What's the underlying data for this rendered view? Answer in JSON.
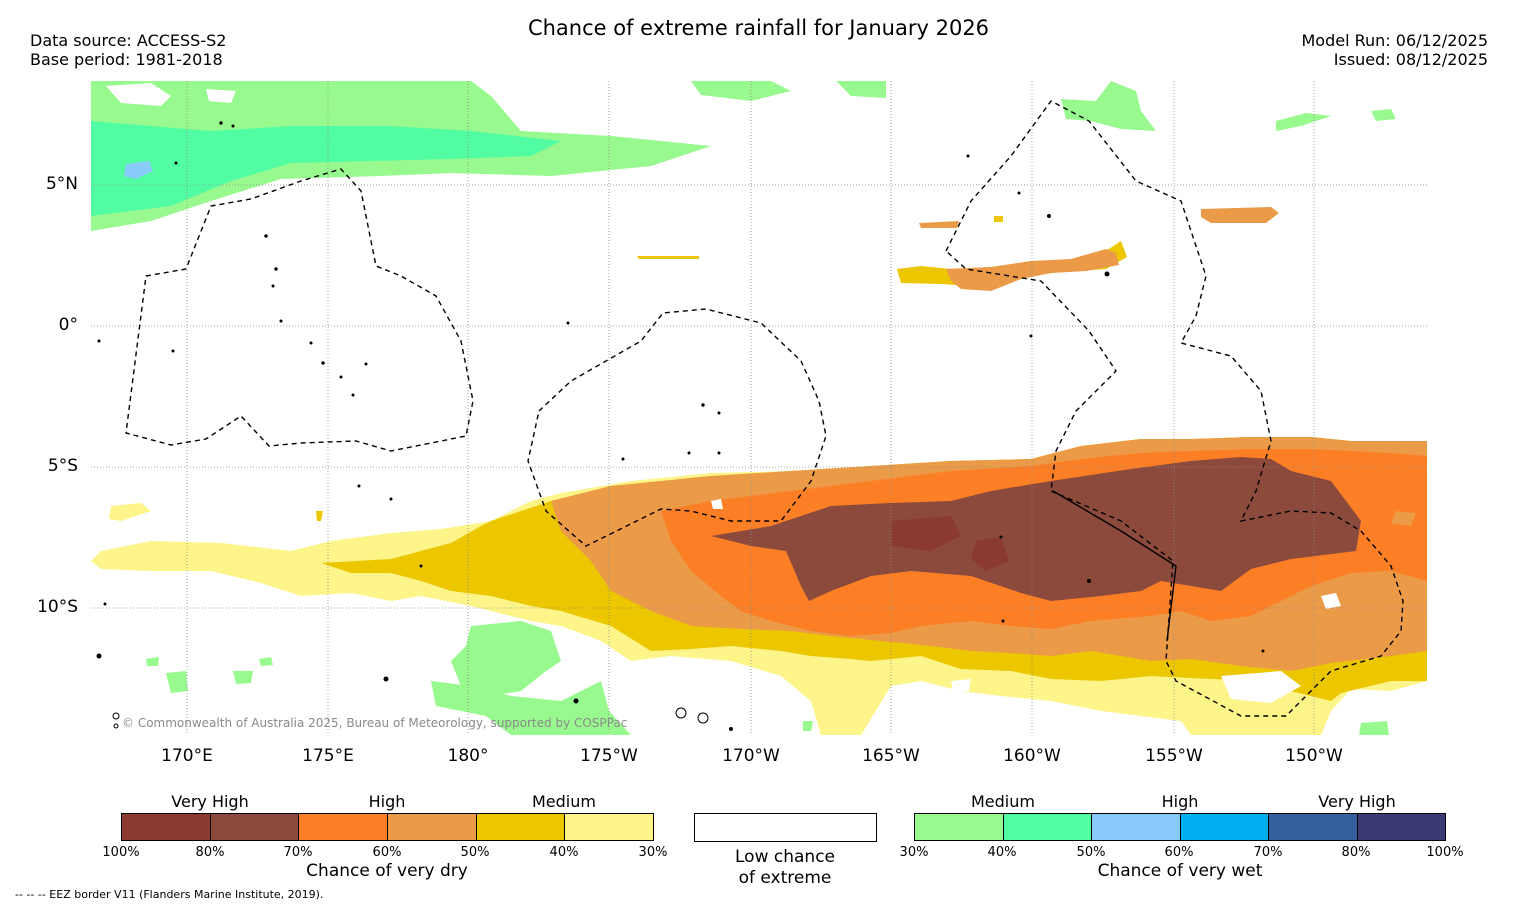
{
  "header": {
    "title": "Chance of extreme rainfall for January 2026",
    "data_source": "Data source: ACCESS-S2",
    "base_period": "Base period: 1981-2018",
    "model_run": "Model Run: 06/12/2025",
    "issued": "Issued: 08/12/2025"
  },
  "map": {
    "lat_labels": [
      "5°N",
      "0°",
      "5°S",
      "10°S"
    ],
    "lon_labels": [
      "170°E",
      "175°E",
      "180°",
      "175°W",
      "170°W",
      "165°W",
      "160°W",
      "155°W",
      "150°W"
    ],
    "copyright": "© Commonwealth of Australia 2025, Bureau of Meteorology, supported by COSPPac"
  },
  "colors": {
    "dry_100_90": "#8b3a2f",
    "dry_90_80": "#8b4a3b",
    "dry_70_60": "#fc7f26",
    "dry_60_50": "#eb9a48",
    "dry_50_40": "#ecc700",
    "dry_40_30": "#fdf48a",
    "wet_30_40": "#98fa8e",
    "wet_40_50": "#52fca2",
    "wet_50_60": "#88cafa",
    "wet_60_70": "#00b0f0",
    "wet_70_80": "#365f9e",
    "wet_80_100": "#3b3a76"
  },
  "legend": {
    "dry": {
      "groups": [
        "Very High",
        "High",
        "Medium"
      ],
      "ticks": [
        "100%",
        "80%",
        "70%",
        "60%",
        "50%",
        "40%",
        "30%"
      ],
      "caption": "Chance of very dry"
    },
    "low": {
      "caption_line1": "Low chance",
      "caption_line2": "of extreme"
    },
    "wet": {
      "groups": [
        "Medium",
        "High",
        "Very High"
      ],
      "ticks": [
        "30%",
        "40%",
        "50%",
        "60%",
        "70%",
        "80%",
        "100%"
      ],
      "caption": "Chance of very wet"
    },
    "footnote": "-- -- -- EEZ border V11 (Flanders Marine Institute, 2019)."
  }
}
